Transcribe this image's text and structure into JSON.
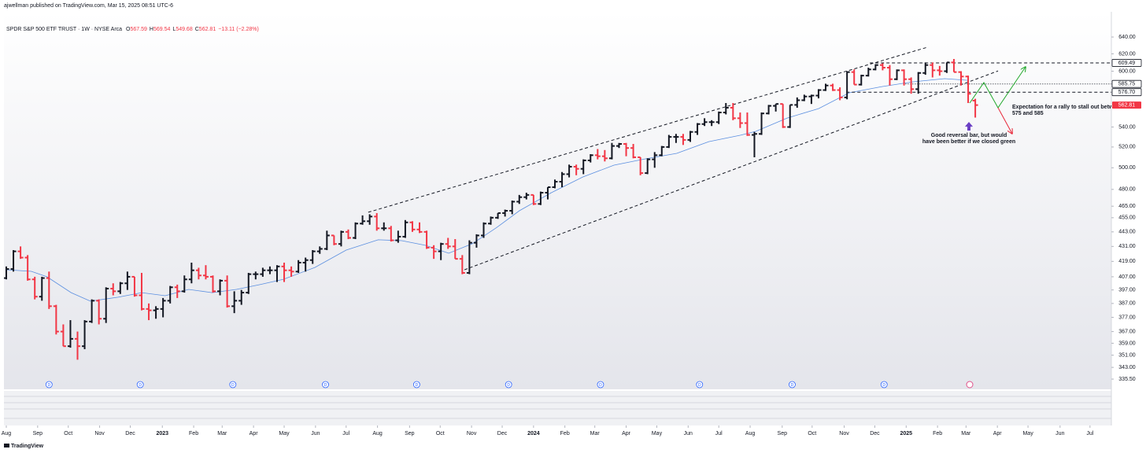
{
  "header": {
    "text": "ajwellman published on TradingView.com, Mar 15, 2025 08:51 UTC-6"
  },
  "chart_data": {
    "type": "ohlc",
    "legend": {
      "symbol": "SPDR S&P 500 ETF TRUST · 1W · NYSE Arca",
      "fields": [
        "O",
        "H",
        "L",
        "C"
      ],
      "change": "−13.11 (−2.28%)"
    },
    "up_color": "#131722",
    "down_color": "#f23645",
    "bars": [
      [
        406,
        415,
        405,
        413
      ],
      [
        413,
        428,
        411,
        427
      ],
      [
        427,
        431,
        421,
        422
      ],
      [
        422,
        424,
        404,
        405
      ],
      [
        405,
        407,
        390,
        392
      ],
      [
        392,
        407,
        389,
        406
      ],
      [
        406,
        411,
        383,
        385
      ],
      [
        385,
        386,
        365,
        367
      ],
      [
        367,
        372,
        357,
        357
      ],
      [
        357,
        375,
        356,
        362
      ],
      [
        362,
        367,
        348,
        357
      ],
      [
        357,
        375,
        355,
        374
      ],
      [
        374,
        390,
        373,
        389
      ],
      [
        389,
        390,
        372,
        376
      ],
      [
        376,
        399,
        373,
        398
      ],
      [
        398,
        402,
        393,
        396
      ],
      [
        396,
        403,
        394,
        402
      ],
      [
        402,
        411,
        397,
        407
      ],
      [
        407,
        407,
        392,
        393
      ],
      [
        393,
        410,
        382,
        383
      ],
      [
        383,
        387,
        375,
        382
      ],
      [
        382,
        385,
        376,
        383
      ],
      [
        383,
        391,
        377,
        389
      ],
      [
        389,
        400,
        387,
        399
      ],
      [
        399,
        401,
        391,
        396
      ],
      [
        396,
        408,
        395,
        405
      ],
      [
        405,
        418,
        402,
        412
      ],
      [
        412,
        414,
        405,
        408
      ],
      [
        408,
        416,
        405,
        407
      ],
      [
        407,
        408,
        395,
        396
      ],
      [
        396,
        405,
        393,
        404
      ],
      [
        404,
        408,
        384,
        385
      ],
      [
        385,
        396,
        380,
        389
      ],
      [
        389,
        397,
        386,
        395
      ],
      [
        395,
        410,
        394,
        409
      ],
      [
        409,
        411,
        405,
        409
      ],
      [
        409,
        414,
        407,
        412
      ],
      [
        412,
        415,
        409,
        412
      ],
      [
        412,
        416,
        403,
        415
      ],
      [
        415,
        418,
        403,
        412
      ],
      [
        412,
        415,
        407,
        411
      ],
      [
        411,
        420,
        410,
        418
      ],
      [
        418,
        422,
        411,
        420
      ],
      [
        420,
        428,
        417,
        427
      ],
      [
        427,
        431,
        425,
        429
      ],
      [
        429,
        444,
        428,
        440
      ],
      [
        440,
        440,
        432,
        433
      ],
      [
        433,
        444,
        431,
        443
      ],
      [
        443,
        445,
        437,
        438
      ],
      [
        438,
        451,
        437,
        450
      ],
      [
        450,
        457,
        449,
        452
      ],
      [
        452,
        458,
        449,
        456
      ],
      [
        456,
        459,
        444,
        446
      ],
      [
        446,
        451,
        444,
        446
      ],
      [
        446,
        448,
        435,
        436
      ],
      [
        436,
        444,
        434,
        439
      ],
      [
        439,
        453,
        438,
        451
      ],
      [
        451,
        452,
        443,
        445
      ],
      [
        445,
        451,
        442,
        443
      ],
      [
        443,
        444,
        429,
        430
      ],
      [
        430,
        432,
        421,
        427
      ],
      [
        427,
        434,
        420,
        433
      ],
      [
        433,
        438,
        429,
        431
      ],
      [
        431,
        437,
        421,
        421
      ],
      [
        421,
        424,
        409,
        410
      ],
      [
        410,
        436,
        409,
        434
      ],
      [
        434,
        441,
        430,
        440
      ],
      [
        440,
        451,
        438,
        450
      ],
      [
        450,
        456,
        449,
        455
      ],
      [
        455,
        459,
        454,
        459
      ],
      [
        459,
        462,
        456,
        461
      ],
      [
        461,
        470,
        458,
        469
      ],
      [
        469,
        475,
        467,
        473
      ],
      [
        473,
        477,
        471,
        475
      ],
      [
        475,
        475,
        466,
        467
      ],
      [
        467,
        478,
        466,
        477
      ],
      [
        477,
        482,
        471,
        482
      ],
      [
        482,
        489,
        481,
        487
      ],
      [
        487,
        496,
        482,
        494
      ],
      [
        494,
        503,
        491,
        501
      ],
      [
        501,
        503,
        493,
        499
      ],
      [
        499,
        508,
        494,
        507
      ],
      [
        507,
        513,
        505,
        512
      ],
      [
        512,
        518,
        508,
        511
      ],
      [
        511,
        517,
        506,
        509
      ],
      [
        509,
        524,
        508,
        521
      ],
      [
        521,
        524,
        519,
        523
      ],
      [
        523,
        524,
        511,
        519
      ],
      [
        519,
        523,
        509,
        510
      ],
      [
        510,
        510,
        493,
        495
      ],
      [
        495,
        509,
        494,
        508
      ],
      [
        508,
        515,
        500,
        512
      ],
      [
        512,
        521,
        511,
        520
      ],
      [
        520,
        532,
        519,
        530
      ],
      [
        530,
        533,
        524,
        530
      ],
      [
        530,
        533,
        522,
        527
      ],
      [
        527,
        536,
        525,
        535
      ],
      [
        535,
        544,
        532,
        543
      ],
      [
        543,
        549,
        541,
        545
      ],
      [
        545,
        547,
        541,
        545
      ],
      [
        545,
        556,
        543,
        555
      ],
      [
        555,
        565,
        553,
        560
      ],
      [
        560,
        565,
        547,
        549
      ],
      [
        549,
        555,
        539,
        544
      ],
      [
        544,
        555,
        531,
        532
      ],
      [
        532,
        535,
        510,
        533
      ],
      [
        533,
        555,
        532,
        554
      ],
      [
        554,
        563,
        553,
        562
      ],
      [
        562,
        564,
        556,
        564
      ],
      [
        564,
        564,
        539,
        540
      ],
      [
        540,
        563,
        539,
        563
      ],
      [
        563,
        571,
        560,
        568
      ],
      [
        568,
        574,
        567,
        572
      ],
      [
        572,
        574,
        564,
        573
      ],
      [
        573,
        580,
        570,
        579
      ],
      [
        579,
        586,
        578,
        584
      ],
      [
        584,
        586,
        578,
        579
      ],
      [
        579,
        582,
        568,
        571
      ],
      [
        571,
        600,
        569,
        599
      ],
      [
        599,
        602,
        585,
        585
      ],
      [
        585,
        596,
        584,
        595
      ],
      [
        595,
        604,
        594,
        602
      ],
      [
        602,
        608,
        601,
        607
      ],
      [
        607,
        609,
        601,
        604
      ],
      [
        604,
        607,
        584,
        591
      ],
      [
        591,
        602,
        590,
        601
      ],
      [
        601,
        602,
        584,
        591
      ],
      [
        591,
        593,
        575,
        580
      ],
      [
        580,
        599,
        575,
        598
      ],
      [
        598,
        610,
        596,
        607
      ],
      [
        607,
        610,
        593,
        601
      ],
      [
        601,
        606,
        595,
        600
      ],
      [
        600,
        610,
        598,
        610
      ],
      [
        610,
        614,
        599,
        599
      ],
      [
        599,
        600,
        584,
        594
      ],
      [
        594,
        595,
        565,
        575
      ],
      [
        567.59,
        569.54,
        549.68,
        562.81
      ]
    ],
    "ma": {
      "color": "#5b8fe0",
      "x": [
        0,
        3.5,
        5.7,
        9.1,
        11.8,
        15.7,
        19.0,
        22.3,
        25.6,
        28.9,
        32.3,
        35.6,
        38.9,
        43.3,
        47.7,
        52.2,
        55.5,
        58.8,
        62.1,
        65.4,
        68.7,
        72.0,
        76.5,
        80.9,
        85.3,
        89.7,
        94.1,
        98.6,
        103.0,
        105.2,
        109.6,
        114.0,
        118.3,
        122.9,
        127.3,
        131.7,
        135.0
      ],
      "values": [
        412.4,
        411.2,
        407.0,
        395.0,
        388.7,
        391.6,
        395.0,
        392.7,
        397.4,
        395.0,
        397.4,
        401.0,
        405.1,
        414.2,
        428.0,
        436.4,
        435.7,
        431.9,
        425.5,
        433.2,
        446.1,
        461.0,
        477.0,
        491.3,
        502.5,
        508.5,
        513.8,
        525.3,
        531.6,
        535.6,
        549.2,
        559.1,
        576.0,
        582.8,
        588.1,
        591.6,
        589.8
      ]
    },
    "trendlines": [
      {
        "x": [
          50.8,
          129.3
        ],
        "values": [
          459.7,
          627.8
        ]
      },
      {
        "x": [
          64.3,
          139.2
        ],
        "values": [
          412.4,
          600.3
        ]
      }
    ],
    "levels": [
      {
        "value": 609.49,
        "start": 121.2,
        "style": "dashed"
      },
      {
        "value": 585.75,
        "start": 126.2,
        "style": "dotted"
      },
      {
        "value": 576.7,
        "label": "576.70",
        "start": 117.9,
        "style": "dashed"
      }
    ],
    "annotations": [
      {
        "lines": [
          "Good reversal bar, but would",
          "have been better if we closed green"
        ]
      },
      {
        "lines": [
          "Expectation for a rally to stall out betw",
          "575 and 585"
        ]
      }
    ],
    "dividend_label": "D",
    "dividends": [
      6.0,
      18.8,
      31.8,
      44.8,
      57.6,
      70.5,
      83.4,
      97.3,
      110.3,
      123.2
    ],
    "log_scale": true,
    "xlim": [
      -0.33,
      155.1
    ],
    "ylim": [
      329.1,
      671.2
    ],
    "xticks": [
      {
        "value": 0,
        "label": "Aug"
      },
      {
        "value": 4.4,
        "label": "Sep"
      },
      {
        "value": 8.7,
        "label": "Oct"
      },
      {
        "value": 13.1,
        "label": "Nov"
      },
      {
        "value": 17.4,
        "label": "Dec"
      },
      {
        "value": 21.9,
        "label": "2023"
      },
      {
        "value": 26.3,
        "label": "Feb"
      },
      {
        "value": 30.3,
        "label": "Mar"
      },
      {
        "value": 34.7,
        "label": "Apr"
      },
      {
        "value": 39,
        "label": "May"
      },
      {
        "value": 43.4,
        "label": "Jun"
      },
      {
        "value": 47.7,
        "label": "Jul"
      },
      {
        "value": 52.1,
        "label": "Aug"
      },
      {
        "value": 56.6,
        "label": "Sep"
      },
      {
        "value": 60.9,
        "label": "Oct"
      },
      {
        "value": 65.3,
        "label": "Nov"
      },
      {
        "value": 69.6,
        "label": "Dec"
      },
      {
        "value": 74,
        "label": "2024"
      },
      {
        "value": 78.4,
        "label": "Feb"
      },
      {
        "value": 82.6,
        "label": "Mar"
      },
      {
        "value": 87,
        "label": "Apr"
      },
      {
        "value": 91.3,
        "label": "May"
      },
      {
        "value": 95.7,
        "label": "Jun"
      },
      {
        "value": 100,
        "label": "Jul"
      },
      {
        "value": 104.4,
        "label": "Aug"
      },
      {
        "value": 108.9,
        "label": "Sep"
      },
      {
        "value": 113.1,
        "label": "Oct"
      },
      {
        "value": 117.6,
        "label": "Nov"
      },
      {
        "value": 121.9,
        "label": "Dec"
      },
      {
        "value": 126.3,
        "label": "2025"
      },
      {
        "value": 130.7,
        "label": "Feb"
      },
      {
        "value": 134.7,
        "label": "Mar"
      },
      {
        "value": 139.1,
        "label": "Apr"
      },
      {
        "value": 143.4,
        "label": "May"
      },
      {
        "value": 147.9,
        "label": "Jun"
      },
      {
        "value": 152.1,
        "label": "Jul"
      }
    ],
    "yticks": [
      {
        "value": 640,
        "label": "640.00"
      },
      {
        "value": 620,
        "label": "620.00"
      },
      {
        "value": 600,
        "label": "600.00"
      },
      {
        "value": 540,
        "label": "540.00"
      },
      {
        "value": 520,
        "label": "520.00"
      },
      {
        "value": 500,
        "label": "500.00"
      },
      {
        "value": 480,
        "label": "480.00"
      },
      {
        "value": 465,
        "label": "465.00"
      },
      {
        "value": 455,
        "label": "455.00"
      },
      {
        "value": 443,
        "label": "443.00"
      },
      {
        "value": 431,
        "label": "431.00"
      },
      {
        "value": 419,
        "label": "419.00"
      },
      {
        "value": 407,
        "label": "407.00"
      },
      {
        "value": 397,
        "label": "397.00"
      },
      {
        "value": 387,
        "label": "387.00"
      },
      {
        "value": 377,
        "label": "377.00"
      },
      {
        "value": 367,
        "label": "367.00"
      },
      {
        "value": 359,
        "label": "359.00"
      },
      {
        "value": 351,
        "label": "351.00"
      },
      {
        "value": 343,
        "label": "343.00"
      },
      {
        "value": 335.5,
        "label": "335.50"
      }
    ]
  },
  "footer": {
    "brand": "TradingView"
  }
}
